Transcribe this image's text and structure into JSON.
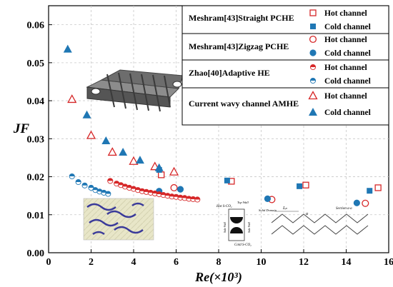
{
  "chart_data": {
    "type": "scatter",
    "xlabel": "Re(×10³)",
    "ylabel": "JF",
    "xlim": [
      0,
      16
    ],
    "ylim": [
      0,
      0.065
    ],
    "xticks": [
      0,
      2,
      4,
      6,
      8,
      10,
      12,
      14,
      16
    ],
    "yticks": [
      0.0,
      0.01,
      0.02,
      0.03,
      0.04,
      0.05,
      0.06
    ],
    "xtick_labels": [
      "0",
      "2",
      "4",
      "6",
      "8",
      "10",
      "12",
      "14",
      "16"
    ],
    "ytick_labels": [
      "0.00",
      "0.01",
      "0.02",
      "0.03",
      "0.04",
      "0.05",
      "0.06"
    ],
    "grid": true,
    "legend_placement": "top-right",
    "legend_groups": [
      {
        "title": "Meshram[43]Straight PCHE",
        "items": [
          "Hot channel",
          "Cold channel"
        ]
      },
      {
        "title": "Meshram[43]Zigzag PCHE",
        "items": [
          "Hot channel",
          "Cold channel"
        ]
      },
      {
        "title": "Zhao[40]Adaptive HE",
        "items": [
          "Hot channel",
          "Cold channel"
        ]
      },
      {
        "title": "Current wavy channel AMHE",
        "items": [
          "Hot channel",
          "Cold channel"
        ]
      }
    ],
    "series": [
      {
        "name": "Meshram[43]Straight PCHE Hot channel",
        "marker": "square-open",
        "color": "#d62728",
        "points": [
          [
            5.3,
            0.0205
          ],
          [
            8.6,
            0.0188
          ],
          [
            12.1,
            0.0178
          ],
          [
            15.5,
            0.0171
          ]
        ]
      },
      {
        "name": "Meshram[43]Straight PCHE Cold channel",
        "marker": "square-filled",
        "color": "#1f77b4",
        "points": [
          [
            5.2,
            0.0218
          ],
          [
            8.4,
            0.019
          ],
          [
            11.8,
            0.0175
          ],
          [
            15.1,
            0.0163
          ]
        ]
      },
      {
        "name": "Meshram[43]Zigzag PCHE Hot channel",
        "marker": "circle-open",
        "color": "#d62728",
        "points": [
          [
            5.9,
            0.0171
          ],
          [
            10.5,
            0.014
          ],
          [
            14.9,
            0.013
          ]
        ]
      },
      {
        "name": "Meshram[43]Zigzag PCHE Cold channel",
        "marker": "circle-filled",
        "color": "#1f77b4",
        "points": [
          [
            5.2,
            0.0162
          ],
          [
            6.2,
            0.0167
          ],
          [
            10.3,
            0.0142
          ],
          [
            14.5,
            0.0131
          ]
        ]
      },
      {
        "name": "Zhao[40]Adaptive HE Hot channel",
        "marker": "half-circle",
        "color": "#d62728",
        "points": [
          [
            2.9,
            0.0189
          ],
          [
            3.2,
            0.0182
          ],
          [
            3.4,
            0.0178
          ],
          [
            3.6,
            0.0174
          ],
          [
            3.8,
            0.0171
          ],
          [
            4.0,
            0.0168
          ],
          [
            4.2,
            0.0165
          ],
          [
            4.4,
            0.0162
          ],
          [
            4.6,
            0.016
          ],
          [
            4.8,
            0.0158
          ],
          [
            5.0,
            0.0156
          ],
          [
            5.2,
            0.0154
          ],
          [
            5.4,
            0.0152
          ],
          [
            5.6,
            0.015
          ],
          [
            5.8,
            0.0148
          ],
          [
            6.0,
            0.0147
          ],
          [
            6.2,
            0.0145
          ],
          [
            6.4,
            0.0144
          ],
          [
            6.6,
            0.0142
          ],
          [
            6.8,
            0.0141
          ],
          [
            7.0,
            0.014
          ]
        ]
      },
      {
        "name": "Zhao[40]Adaptive HE Cold channel",
        "marker": "half-circle",
        "color": "#1f77b4",
        "points": [
          [
            1.1,
            0.0201
          ],
          [
            1.4,
            0.0186
          ],
          [
            1.7,
            0.0177
          ],
          [
            2.0,
            0.0171
          ],
          [
            2.2,
            0.0165
          ],
          [
            2.4,
            0.0161
          ],
          [
            2.6,
            0.0158
          ],
          [
            2.8,
            0.0155
          ]
        ]
      },
      {
        "name": "Current wavy channel AMHE Hot channel",
        "marker": "triangle-open",
        "color": "#d62728",
        "points": [
          [
            1.1,
            0.0404
          ],
          [
            2.0,
            0.0309
          ],
          [
            3.0,
            0.0265
          ],
          [
            4.0,
            0.0241
          ],
          [
            5.0,
            0.0227
          ],
          [
            5.9,
            0.0213
          ]
        ]
      },
      {
        "name": "Current wavy channel AMHE Cold channel",
        "marker": "triangle-filled",
        "color": "#1f77b4",
        "points": [
          [
            0.9,
            0.0536
          ],
          [
            1.8,
            0.0363
          ],
          [
            2.7,
            0.0295
          ],
          [
            3.5,
            0.0265
          ],
          [
            4.3,
            0.0244
          ],
          [
            5.2,
            0.0224
          ]
        ]
      }
    ],
    "inset_labels": {
      "hot_fluid": "Hot S-CO₂",
      "top_wall": "Top Wall",
      "solid_domain": "Solid Domain",
      "side_wall": "Side Wall",
      "side_wall_right": "Side Wall",
      "cold_fluid": "Cold S-CO₂",
      "length": "Lₚ",
      "alpha": "α",
      "section": "Section a-a"
    }
  }
}
